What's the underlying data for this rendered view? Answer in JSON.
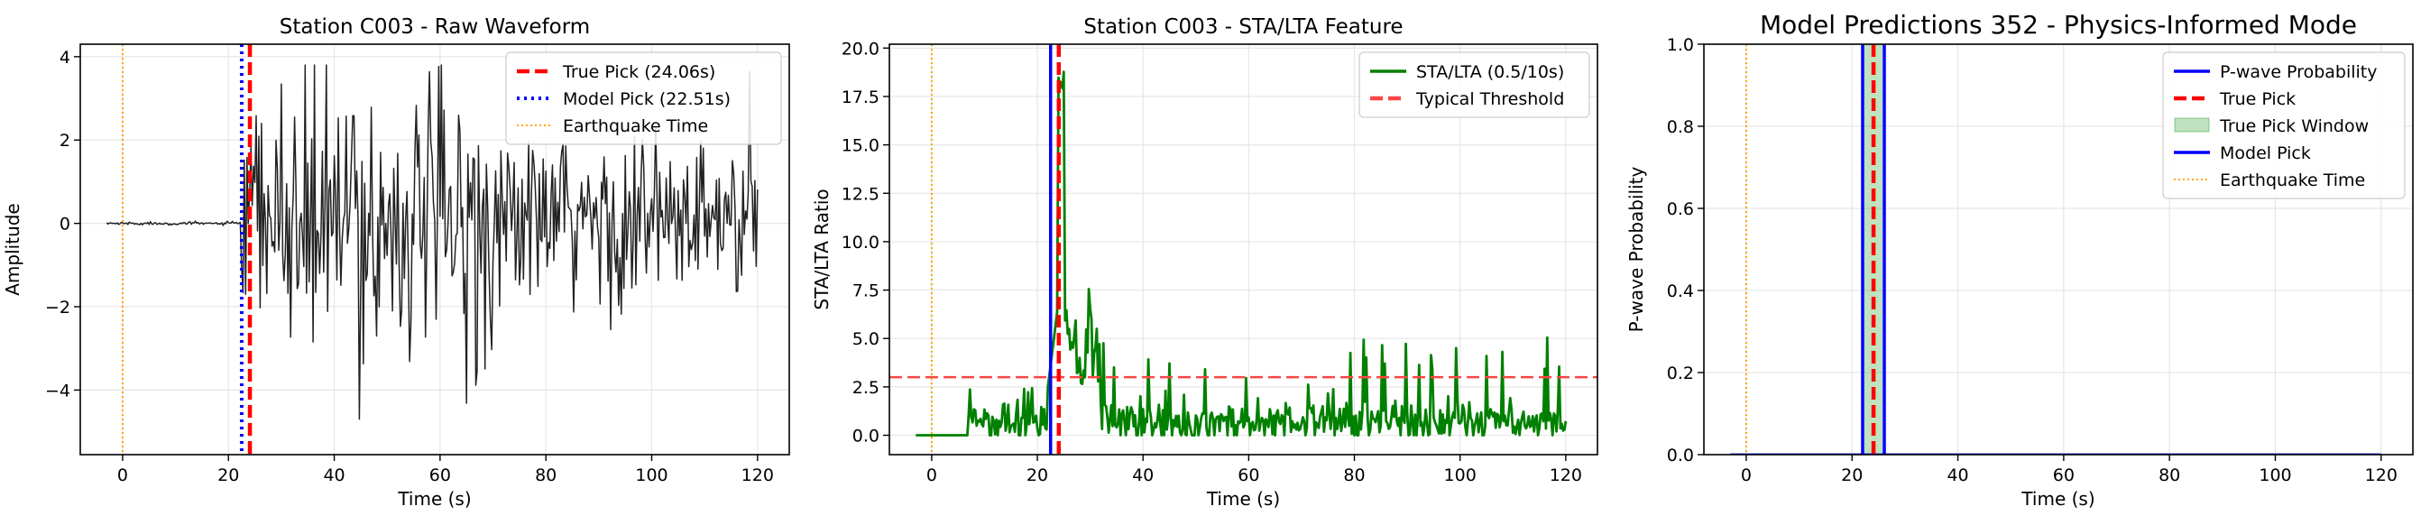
{
  "chart_data": [
    {
      "type": "line",
      "title": "Station C003 - Raw Waveform",
      "xlabel": "Time (s)",
      "ylabel": "Amplitude",
      "xlim": [
        -8,
        126
      ],
      "ylim": [
        -5.55,
        4.3
      ],
      "xticks": [
        0,
        20,
        40,
        60,
        80,
        100,
        120
      ],
      "yticks": [
        -4,
        -2,
        0,
        2,
        4
      ],
      "ytick_labels": [
        "−4",
        "−2",
        "0",
        "2",
        "4"
      ],
      "grid": true,
      "legend_position": "top-right",
      "series": [
        {
          "name": "",
          "color": "#222222",
          "style": "solid",
          "kind": "waveform",
          "x_start": -3,
          "x_end": 120,
          "quiet_until": 22.4,
          "amplitude_max": 3.8,
          "amplitude_min": -5.1
        }
      ],
      "vlines": [
        {
          "name": "True Pick (24.06s)",
          "x": 24.06,
          "color": "#ff0000",
          "style": "dashed"
        },
        {
          "name": "Model Pick (22.51s)",
          "x": 22.51,
          "color": "#0000ff",
          "style": "dotted"
        },
        {
          "name": "Earthquake Time",
          "x": 0,
          "color": "#ffa500",
          "style": "dotted-thin"
        }
      ],
      "hlines": [],
      "legend": [
        {
          "label": "True Pick (24.06s)",
          "color": "#ff0000",
          "style": "dashed"
        },
        {
          "label": "Model Pick (22.51s)",
          "color": "#0000ff",
          "style": "dotted"
        },
        {
          "label": "Earthquake Time",
          "color": "#ffa500",
          "style": "dotted-thin"
        }
      ]
    },
    {
      "type": "line",
      "title": "Station C003 - STA/LTA Feature",
      "xlabel": "Time (s)",
      "ylabel": "STA/LTA Ratio",
      "xlim": [
        -8,
        126
      ],
      "ylim": [
        -1.0,
        20.2
      ],
      "xticks": [
        0,
        20,
        40,
        60,
        80,
        100,
        120
      ],
      "yticks": [
        0.0,
        2.5,
        5.0,
        7.5,
        10.0,
        12.5,
        15.0,
        17.5,
        20.0
      ],
      "ytick_labels": [
        "0.0",
        "2.5",
        "5.0",
        "7.5",
        "10.0",
        "12.5",
        "15.0",
        "17.5",
        "20.0"
      ],
      "grid": true,
      "legend_position": "top-right",
      "series": [
        {
          "name": "STA/LTA (0.5/10s)",
          "color": "#008000",
          "style": "solid",
          "kind": "stalta",
          "x_start": -3,
          "x_end": 120,
          "peak": 19.0,
          "peak_x": 24.2
        }
      ],
      "vlines": [
        {
          "name": "",
          "x": 22.51,
          "color": "#0000ff",
          "style": "solid"
        },
        {
          "name": "",
          "x": 24.06,
          "color": "#ff0000",
          "style": "dashed"
        },
        {
          "name": "",
          "x": 0,
          "color": "#ffa500",
          "style": "dotted-thin"
        }
      ],
      "hlines": [
        {
          "name": "Typical Threshold",
          "y": 3.0,
          "color": "#ff4444",
          "style": "dashed"
        }
      ],
      "legend": [
        {
          "label": "STA/LTA (0.5/10s)",
          "color": "#008000",
          "style": "solid"
        },
        {
          "label": "Typical Threshold",
          "color": "#ff4444",
          "style": "dashed"
        }
      ]
    },
    {
      "type": "line",
      "title": "Model Predictions 352 - Physics-Informed Mode",
      "xlabel": "Time (s)",
      "ylabel": "P-wave Probability",
      "xlim": [
        -8,
        126
      ],
      "ylim": [
        0.0,
        1.0
      ],
      "xticks": [
        0,
        20,
        40,
        60,
        80,
        100,
        120
      ],
      "yticks": [
        0.0,
        0.2,
        0.4,
        0.6,
        0.8,
        1.0
      ],
      "ytick_labels": [
        "0.0",
        "0.2",
        "0.4",
        "0.6",
        "0.8",
        "1.0"
      ],
      "grid": true,
      "legend_position": "top-right",
      "series": [
        {
          "name": "P-wave Probability",
          "color": "#0000ff",
          "style": "solid",
          "kind": "probability",
          "x_start": -3,
          "x_end": 120,
          "value": 0.0
        }
      ],
      "spans": [
        {
          "name": "True Pick Window",
          "x0": 22.0,
          "x1": 26.1,
          "color": "#2ca02c",
          "alpha": 0.3
        }
      ],
      "vlines": [
        {
          "name": "",
          "x": 22.0,
          "color": "#0000ff",
          "style": "solid"
        },
        {
          "name": "",
          "x": 26.1,
          "color": "#0000ff",
          "style": "solid"
        },
        {
          "name": "",
          "x": 24.06,
          "color": "#ff0000",
          "style": "dashed"
        },
        {
          "name": "",
          "x": 0,
          "color": "#ffa500",
          "style": "dotted-thin"
        }
      ],
      "hlines": [],
      "legend": [
        {
          "label": "P-wave Probability",
          "color": "#0000ff",
          "style": "solid"
        },
        {
          "label": "True Pick",
          "color": "#ff0000",
          "style": "dashed"
        },
        {
          "label": "True Pick Window",
          "color": "#2ca02c",
          "style": "patch"
        },
        {
          "label": "Model Pick",
          "color": "#0000ff",
          "style": "solid"
        },
        {
          "label": "Earthquake Time",
          "color": "#ffa500",
          "style": "dotted-thin"
        }
      ]
    }
  ]
}
